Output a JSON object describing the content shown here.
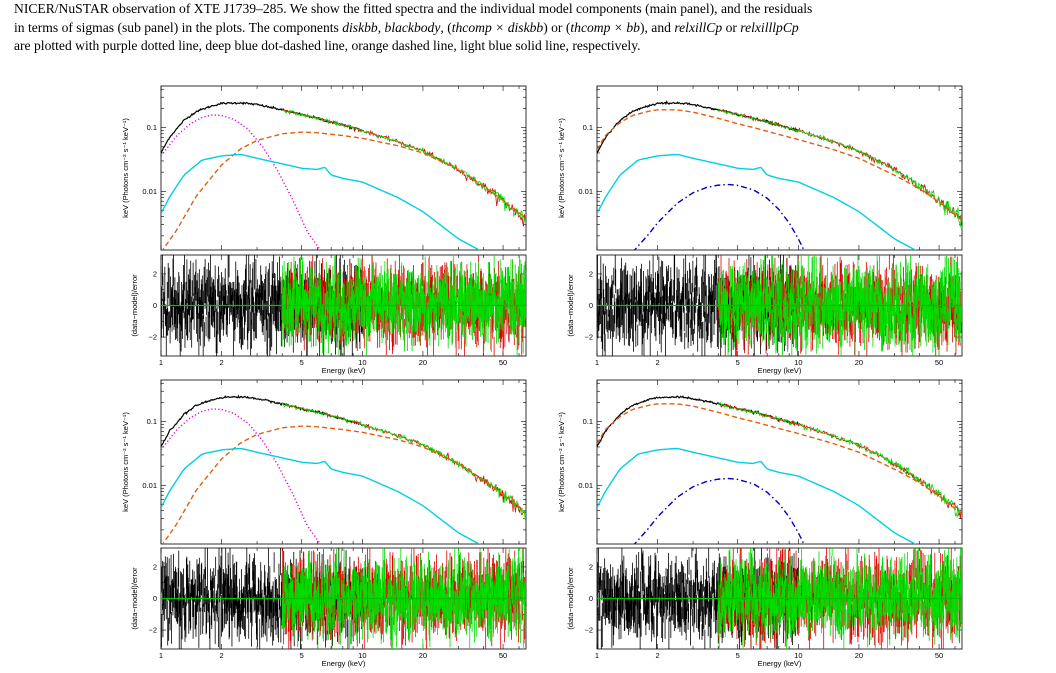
{
  "caption": {
    "line1": "NICER/NuSTAR observation of XTE J1739–285. We show the fitted spectra and the individual model components (main panel), and the residuals",
    "line2_a": "in terms of sigmas (sub panel) in the plots. The components ",
    "c_diskbb": "diskbb",
    "sep1": ", ",
    "c_blackbody": "blackbody",
    "sep2": ", (",
    "c_thcomp_diskbb": "thcomp × diskbb",
    "sep3": ") or (",
    "c_thcomp_bb": "thcomp × bb",
    "sep4": "), and ",
    "c_relxillcp": "relxillCp",
    "sep5": " or ",
    "c_relxilllpcp": "relxilllpCp",
    "line3": "are plotted with purple dotted line, deep blue dot-dashed line, orange dashed line, light blue solid line, respectively."
  },
  "colors": {
    "data_nicer": "#000000",
    "data_fpma": "#e00000",
    "data_fpmb": "#00dd00",
    "diskbb": "#dd00dd",
    "blackbody": "#0000c0",
    "thcomp": "#e06010",
    "relxill": "#00d0e0",
    "zero_line": "#00c000"
  },
  "chart_data": [
    {
      "type": "line",
      "panel": "top-left",
      "components": [
        "diskbb",
        "thcomp",
        "relxill"
      ],
      "ylabel_main": "keV (Photons cm⁻² s⁻¹ keV⁻¹)",
      "ylabel_resid": "(data−model)/error",
      "xlabel": "Energy (keV)",
      "x_ticks": [
        "1",
        "2",
        "5",
        "10",
        "20",
        "50"
      ],
      "y_ticks_main": [
        "0.1",
        "0.01"
      ],
      "y_ticks_resid": [
        "2",
        "0",
        "−2"
      ],
      "xscale": "log",
      "yscale": "log",
      "xlim": [
        1,
        65
      ],
      "ylim_main": [
        0.0012,
        0.45
      ],
      "ylim_resid": [
        -3.2,
        3.2
      ],
      "series": [
        {
          "name": "diskbb",
          "x": [
            1.0,
            1.2,
            1.4,
            1.6,
            1.8,
            2.0,
            2.3,
            2.7,
            3.2,
            3.8,
            4.5,
            5.3,
            6.3
          ],
          "y": [
            0.036,
            0.075,
            0.115,
            0.145,
            0.158,
            0.155,
            0.135,
            0.095,
            0.05,
            0.021,
            0.0075,
            0.0024,
            0.0011
          ]
        },
        {
          "name": "thcomp",
          "x": [
            1.0,
            1.2,
            1.5,
            2.0,
            2.5,
            3.0,
            4.0,
            5.0,
            6.0,
            8.0,
            10.0,
            15.0,
            20.0,
            30.0,
            40.0,
            50.0,
            65.0
          ],
          "y": [
            0.0011,
            0.0025,
            0.0085,
            0.026,
            0.047,
            0.063,
            0.08,
            0.085,
            0.083,
            0.075,
            0.068,
            0.052,
            0.04,
            0.022,
            0.012,
            0.0072,
            0.0038
          ]
        },
        {
          "name": "relxill",
          "x": [
            1.0,
            1.1,
            1.3,
            1.6,
            2.0,
            2.5,
            3.0,
            4.0,
            5.0,
            6.0,
            6.5,
            7.0,
            8.0,
            10.0,
            15.0,
            20.0,
            30.0,
            40.0
          ],
          "y": [
            0.0045,
            0.008,
            0.018,
            0.031,
            0.036,
            0.038,
            0.033,
            0.027,
            0.023,
            0.022,
            0.024,
            0.018,
            0.016,
            0.014,
            0.008,
            0.0048,
            0.0018,
            0.0011
          ]
        },
        {
          "name": "data",
          "x": [
            1.0,
            1.1,
            1.3,
            1.5,
            1.8,
            2.0,
            2.5,
            3.0,
            4.0,
            5.0,
            6.0,
            8.0,
            10.0,
            15.0,
            20.0,
            30.0,
            40.0,
            50.0,
            65.0
          ],
          "y": [
            0.04,
            0.07,
            0.13,
            0.18,
            0.22,
            0.24,
            0.245,
            0.23,
            0.19,
            0.16,
            0.14,
            0.11,
            0.09,
            0.06,
            0.043,
            0.022,
            0.012,
            0.0072,
            0.0035
          ]
        }
      ]
    },
    {
      "type": "line",
      "panel": "top-right",
      "components": [
        "blackbody",
        "thcomp",
        "relxill"
      ],
      "ylabel_main": "keV (Photons cm⁻² s⁻¹ keV⁻¹)",
      "ylabel_resid": "(data−model)/error",
      "xlabel": "Energy (keV)",
      "x_ticks": [
        "1",
        "2",
        "5",
        "10",
        "20",
        "50"
      ],
      "y_ticks_main": [
        "0.1",
        "0.01"
      ],
      "y_ticks_resid": [
        "2",
        "0",
        "−2"
      ],
      "xscale": "log",
      "yscale": "log",
      "xlim": [
        1,
        65
      ],
      "ylim_main": [
        0.0012,
        0.45
      ],
      "ylim_resid": [
        -3.2,
        3.2
      ],
      "series": [
        {
          "name": "blackbody",
          "x": [
            1.5,
            1.8,
            2.0,
            2.5,
            3.0,
            3.5,
            4.0,
            4.5,
            5.0,
            6.0,
            7.0,
            8.0,
            9.0,
            10.0,
            10.8
          ],
          "y": [
            0.0011,
            0.0021,
            0.0032,
            0.0065,
            0.0095,
            0.0115,
            0.0125,
            0.0128,
            0.0124,
            0.0105,
            0.0078,
            0.0052,
            0.0032,
            0.0018,
            0.0011
          ]
        },
        {
          "name": "thcomp",
          "x": [
            1.0,
            1.1,
            1.3,
            1.5,
            1.8,
            2.0,
            2.5,
            3.0,
            4.0,
            5.0,
            6.0,
            8.0,
            10.0,
            15.0,
            20.0,
            30.0,
            40.0,
            50.0,
            65.0
          ],
          "y": [
            0.045,
            0.075,
            0.12,
            0.155,
            0.18,
            0.19,
            0.19,
            0.175,
            0.14,
            0.115,
            0.1,
            0.078,
            0.065,
            0.045,
            0.033,
            0.018,
            0.011,
            0.0068,
            0.0035
          ]
        },
        {
          "name": "relxill",
          "x": [
            1.0,
            1.1,
            1.3,
            1.6,
            2.0,
            2.5,
            3.0,
            4.0,
            5.0,
            6.0,
            6.5,
            7.0,
            8.0,
            10.0,
            15.0,
            20.0,
            30.0,
            40.0
          ],
          "y": [
            0.0045,
            0.008,
            0.018,
            0.031,
            0.036,
            0.038,
            0.033,
            0.027,
            0.023,
            0.022,
            0.024,
            0.018,
            0.016,
            0.014,
            0.008,
            0.0048,
            0.0018,
            0.0011
          ]
        },
        {
          "name": "data",
          "x": [
            1.0,
            1.1,
            1.3,
            1.5,
            1.8,
            2.0,
            2.5,
            3.0,
            4.0,
            5.0,
            6.0,
            8.0,
            10.0,
            15.0,
            20.0,
            30.0,
            40.0,
            50.0,
            65.0
          ],
          "y": [
            0.04,
            0.07,
            0.13,
            0.18,
            0.22,
            0.24,
            0.245,
            0.23,
            0.19,
            0.16,
            0.14,
            0.11,
            0.09,
            0.06,
            0.043,
            0.022,
            0.012,
            0.0072,
            0.0035
          ]
        }
      ]
    },
    {
      "type": "line",
      "panel": "bottom-left",
      "components": [
        "diskbb",
        "thcomp",
        "relxill"
      ],
      "ylabel_main": "keV (Photons cm⁻² s⁻¹ keV⁻¹)",
      "ylabel_resid": "(data−model)/error",
      "xlabel": "Energy (keV)",
      "x_ticks": [
        "1",
        "2",
        "5",
        "10",
        "20",
        "50"
      ],
      "y_ticks_main": [
        "0.1",
        "0.01"
      ],
      "y_ticks_resid": [
        "2",
        "0",
        "−2"
      ],
      "xscale": "log",
      "yscale": "log",
      "xlim": [
        1,
        65
      ],
      "ylim_main": [
        0.0012,
        0.45
      ],
      "ylim_resid": [
        -3.2,
        3.2
      ],
      "series": [
        {
          "name": "diskbb",
          "x": [
            1.0,
            1.2,
            1.4,
            1.6,
            1.8,
            2.0,
            2.3,
            2.7,
            3.2,
            3.8,
            4.5,
            5.3,
            6.3
          ],
          "y": [
            0.036,
            0.075,
            0.115,
            0.145,
            0.158,
            0.155,
            0.135,
            0.095,
            0.05,
            0.021,
            0.0075,
            0.0024,
            0.0011
          ]
        },
        {
          "name": "thcomp",
          "x": [
            1.0,
            1.2,
            1.5,
            2.0,
            2.5,
            3.0,
            4.0,
            5.0,
            6.0,
            8.0,
            10.0,
            15.0,
            20.0,
            30.0,
            40.0,
            50.0,
            65.0
          ],
          "y": [
            0.0011,
            0.0025,
            0.0085,
            0.026,
            0.047,
            0.063,
            0.08,
            0.085,
            0.083,
            0.075,
            0.068,
            0.052,
            0.04,
            0.022,
            0.012,
            0.0072,
            0.0038
          ]
        },
        {
          "name": "relxill",
          "x": [
            1.0,
            1.1,
            1.3,
            1.6,
            2.0,
            2.5,
            3.0,
            4.0,
            5.0,
            6.0,
            6.5,
            7.0,
            8.0,
            10.0,
            15.0,
            20.0,
            30.0,
            40.0
          ],
          "y": [
            0.0045,
            0.008,
            0.018,
            0.031,
            0.036,
            0.038,
            0.033,
            0.027,
            0.023,
            0.022,
            0.024,
            0.018,
            0.016,
            0.014,
            0.008,
            0.0048,
            0.0018,
            0.0011
          ]
        },
        {
          "name": "data",
          "x": [
            1.0,
            1.1,
            1.3,
            1.5,
            1.8,
            2.0,
            2.5,
            3.0,
            4.0,
            5.0,
            6.0,
            8.0,
            10.0,
            15.0,
            20.0,
            30.0,
            40.0,
            50.0,
            65.0
          ],
          "y": [
            0.04,
            0.07,
            0.13,
            0.18,
            0.22,
            0.24,
            0.245,
            0.23,
            0.19,
            0.16,
            0.14,
            0.11,
            0.09,
            0.06,
            0.043,
            0.022,
            0.012,
            0.0072,
            0.0035
          ]
        }
      ]
    },
    {
      "type": "line",
      "panel": "bottom-right",
      "components": [
        "blackbody",
        "thcomp",
        "relxill"
      ],
      "ylabel_main": "keV (Photons cm⁻² s⁻¹ keV⁻¹)",
      "ylabel_resid": "(data−model)/error",
      "xlabel": "Energy (keV)",
      "x_ticks": [
        "1",
        "2",
        "5",
        "10",
        "20",
        "50"
      ],
      "y_ticks_main": [
        "0.1",
        "0.01"
      ],
      "y_ticks_resid": [
        "2",
        "0",
        "−2"
      ],
      "xscale": "log",
      "yscale": "log",
      "xlim": [
        1,
        65
      ],
      "ylim_main": [
        0.0012,
        0.45
      ],
      "ylim_resid": [
        -3.2,
        3.2
      ],
      "series": [
        {
          "name": "blackbody",
          "x": [
            1.5,
            1.8,
            2.0,
            2.5,
            3.0,
            3.5,
            4.0,
            4.5,
            5.0,
            6.0,
            7.0,
            8.0,
            9.0,
            10.0,
            10.8
          ],
          "y": [
            0.0011,
            0.0021,
            0.0032,
            0.0065,
            0.0095,
            0.0115,
            0.0125,
            0.0128,
            0.0124,
            0.0105,
            0.0078,
            0.0052,
            0.0032,
            0.0018,
            0.0011
          ]
        },
        {
          "name": "thcomp",
          "x": [
            1.0,
            1.1,
            1.3,
            1.5,
            1.8,
            2.0,
            2.5,
            3.0,
            4.0,
            5.0,
            6.0,
            8.0,
            10.0,
            15.0,
            20.0,
            30.0,
            40.0,
            50.0,
            65.0
          ],
          "y": [
            0.045,
            0.075,
            0.12,
            0.155,
            0.18,
            0.19,
            0.19,
            0.175,
            0.14,
            0.115,
            0.1,
            0.078,
            0.065,
            0.045,
            0.033,
            0.018,
            0.011,
            0.0068,
            0.0035
          ]
        },
        {
          "name": "relxill",
          "x": [
            1.0,
            1.1,
            1.3,
            1.6,
            2.0,
            2.5,
            3.0,
            4.0,
            5.0,
            6.0,
            6.5,
            7.0,
            8.0,
            10.0,
            15.0,
            20.0,
            30.0,
            40.0
          ],
          "y": [
            0.0045,
            0.008,
            0.018,
            0.031,
            0.036,
            0.038,
            0.033,
            0.027,
            0.023,
            0.022,
            0.024,
            0.018,
            0.016,
            0.014,
            0.008,
            0.0048,
            0.0018,
            0.0011
          ]
        },
        {
          "name": "data",
          "x": [
            1.0,
            1.1,
            1.3,
            1.5,
            1.8,
            2.0,
            2.5,
            3.0,
            4.0,
            5.0,
            6.0,
            8.0,
            10.0,
            15.0,
            20.0,
            30.0,
            40.0,
            50.0,
            65.0
          ],
          "y": [
            0.04,
            0.07,
            0.13,
            0.18,
            0.22,
            0.24,
            0.245,
            0.23,
            0.19,
            0.16,
            0.14,
            0.11,
            0.09,
            0.06,
            0.043,
            0.022,
            0.012,
            0.0072,
            0.0035
          ]
        }
      ]
    }
  ]
}
